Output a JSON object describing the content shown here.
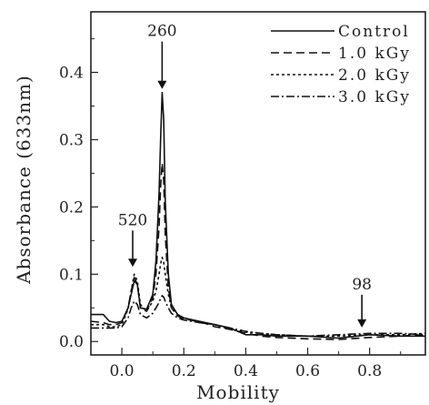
{
  "chart_data": {
    "type": "line",
    "xlabel": "Mobility",
    "ylabel": "Absorbance (633nm)",
    "xlim": [
      -0.1,
      0.98
    ],
    "ylim": [
      -0.02,
      0.49
    ],
    "x_ticks": [
      0.0,
      0.2,
      0.4,
      0.6,
      0.8
    ],
    "x_tick_labels": [
      "0.0",
      "0.2",
      "0.4",
      "0.6",
      "0.8"
    ],
    "y_ticks": [
      0.0,
      0.1,
      0.2,
      0.3,
      0.4
    ],
    "y_tick_labels": [
      "0.0",
      "0.1",
      "0.2",
      "0.3",
      "0.4"
    ],
    "grid": false,
    "legend_position": "top-right",
    "series": [
      {
        "name": "Control",
        "dash": "solid",
        "x": [
          -0.1,
          -0.06,
          -0.04,
          -0.02,
          0.0,
          0.02,
          0.03,
          0.04,
          0.05,
          0.06,
          0.08,
          0.1,
          0.11,
          0.12,
          0.125,
          0.13,
          0.135,
          0.14,
          0.15,
          0.16,
          0.18,
          0.2,
          0.25,
          0.3,
          0.35,
          0.4,
          0.45,
          0.5,
          0.6,
          0.7,
          0.8,
          0.9,
          0.98
        ],
        "y": [
          0.04,
          0.04,
          0.03,
          0.028,
          0.03,
          0.05,
          0.07,
          0.09,
          0.085,
          0.05,
          0.048,
          0.07,
          0.12,
          0.22,
          0.3,
          0.37,
          0.33,
          0.21,
          0.1,
          0.055,
          0.04,
          0.035,
          0.03,
          0.025,
          0.02,
          0.01,
          0.01,
          0.008,
          0.008,
          0.005,
          0.01,
          0.008,
          0.008
        ]
      },
      {
        "name": "1.0  kGy",
        "dash": "dashed",
        "x": [
          -0.1,
          -0.06,
          -0.04,
          -0.02,
          0.0,
          0.02,
          0.03,
          0.04,
          0.05,
          0.06,
          0.08,
          0.1,
          0.11,
          0.12,
          0.125,
          0.13,
          0.135,
          0.14,
          0.15,
          0.16,
          0.18,
          0.2,
          0.25,
          0.3,
          0.35,
          0.4,
          0.45,
          0.5,
          0.6,
          0.7,
          0.8,
          0.9,
          0.98
        ],
        "y": [
          0.03,
          0.028,
          0.025,
          0.025,
          0.028,
          0.05,
          0.075,
          0.095,
          0.085,
          0.05,
          0.045,
          0.065,
          0.1,
          0.17,
          0.23,
          0.265,
          0.24,
          0.16,
          0.08,
          0.05,
          0.038,
          0.033,
          0.03,
          0.022,
          0.018,
          0.012,
          0.008,
          0.006,
          0.004,
          0.003,
          0.006,
          0.008,
          0.01
        ]
      },
      {
        "name": "2.0  kGy",
        "dash": "dotted",
        "x": [
          -0.1,
          -0.06,
          -0.04,
          -0.02,
          0.0,
          0.02,
          0.03,
          0.04,
          0.05,
          0.06,
          0.08,
          0.1,
          0.11,
          0.12,
          0.125,
          0.13,
          0.135,
          0.14,
          0.15,
          0.16,
          0.18,
          0.2,
          0.25,
          0.3,
          0.35,
          0.4,
          0.45,
          0.5,
          0.6,
          0.7,
          0.8,
          0.9,
          0.98
        ],
        "y": [
          0.025,
          0.025,
          0.022,
          0.022,
          0.025,
          0.048,
          0.075,
          0.1,
          0.09,
          0.055,
          0.045,
          0.06,
          0.075,
          0.1,
          0.115,
          0.125,
          0.118,
          0.1,
          0.07,
          0.05,
          0.04,
          0.035,
          0.028,
          0.025,
          0.018,
          0.014,
          0.012,
          0.01,
          0.008,
          0.008,
          0.01,
          0.01,
          0.012
        ]
      },
      {
        "name": "3.0  kGy",
        "dash": "dash-dot",
        "x": [
          -0.1,
          -0.06,
          -0.04,
          -0.02,
          0.0,
          0.02,
          0.03,
          0.04,
          0.05,
          0.06,
          0.08,
          0.1,
          0.11,
          0.12,
          0.125,
          0.13,
          0.135,
          0.14,
          0.15,
          0.16,
          0.18,
          0.2,
          0.25,
          0.3,
          0.35,
          0.4,
          0.45,
          0.5,
          0.6,
          0.7,
          0.8,
          0.9,
          0.98
        ],
        "y": [
          0.02,
          0.02,
          0.02,
          0.02,
          0.022,
          0.035,
          0.05,
          0.06,
          0.055,
          0.04,
          0.035,
          0.042,
          0.05,
          0.058,
          0.064,
          0.068,
          0.066,
          0.06,
          0.05,
          0.042,
          0.035,
          0.032,
          0.028,
          0.025,
          0.02,
          0.015,
          0.012,
          0.01,
          0.008,
          0.01,
          0.012,
          0.012,
          0.01
        ]
      }
    ],
    "annotations": [
      {
        "text": "260",
        "x": 0.13,
        "y": 0.37
      },
      {
        "text": "520",
        "x": 0.035,
        "y": 0.1
      },
      {
        "text": "98",
        "x": 0.775,
        "y": 0.01
      }
    ]
  }
}
